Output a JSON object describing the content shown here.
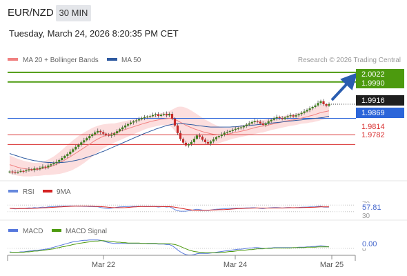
{
  "header": {
    "symbol": "EUR/NZD",
    "timeframe": "30 MIN",
    "datetime": "Tuesday, March 24, 2026 8:20:35 PM CET"
  },
  "legend": {
    "ma20_label": "MA 20 + Bollinger Bands",
    "ma50_label": "MA 50",
    "copyright": "Research © 2026 Trading Central",
    "ma20_color": "#f08080",
    "ma50_color": "#2e5aa0"
  },
  "levels": {
    "target_top": "2.0022",
    "target_bottom": "1.9990",
    "current_price": "1.9916",
    "pivot": "1.9869",
    "support1": "1.9814",
    "support2": "1.9782",
    "target_color": "#4c9a0e",
    "pivot_color": "#2b65d9",
    "support_color": "#d93030"
  },
  "rsi_panel": {
    "rsi_label": "RSI",
    "ma9_label": "9MA",
    "value": "57.81",
    "level_70": "70",
    "level_30": "30",
    "rsi_color": "#6688dd",
    "ma9_color": "#d42222"
  },
  "macd_panel": {
    "macd_label": "MACD",
    "signal_label": "MACD Signal",
    "value": "0.00",
    "zero_level": "0",
    "macd_color": "#5577dd",
    "signal_color": "#4c9a0e"
  },
  "x_axis": {
    "labels": [
      "Mar 22",
      "Mar 24",
      "Mar 25"
    ]
  },
  "chart_data": {
    "type": "candlestick",
    "price_range": [
      1.9675,
      2.004
    ],
    "series": [
      {
        "name": "MA 20 + Bollinger Bands"
      },
      {
        "name": "MA 50"
      }
    ],
    "horizontal_levels": [
      2.0022,
      1.999,
      1.9916,
      1.9869,
      1.9814,
      1.9782
    ],
    "close": [
      1.9692,
      1.969,
      1.9689,
      1.9691,
      1.9694,
      1.9693,
      1.9696,
      1.9699,
      1.9697,
      1.9702,
      1.97,
      1.9704,
      1.9708,
      1.9706,
      1.9712,
      1.9716,
      1.972,
      1.9724,
      1.973,
      1.9737,
      1.9744,
      1.975,
      1.9758,
      1.9766,
      1.9774,
      1.9781,
      1.9789,
      1.9796,
      1.9803,
      1.981,
      1.9816,
      1.9822,
      1.9827,
      1.9823,
      1.9818,
      1.9814,
      1.9811,
      1.9814,
      1.9819,
      1.9826,
      1.9833,
      1.9839,
      1.9845,
      1.985,
      1.9855,
      1.9859,
      1.9862,
      1.9866,
      1.987,
      1.9873,
      1.9875,
      1.9876,
      1.988,
      1.9883,
      1.9877,
      1.9881,
      1.9884,
      1.9879,
      1.9884,
      1.9868,
      1.9845,
      1.982,
      1.98,
      1.9788,
      1.9779,
      1.9783,
      1.979,
      1.9801,
      1.9812,
      1.9808,
      1.9798,
      1.979,
      1.9785,
      1.9792,
      1.9799,
      1.9806,
      1.981,
      1.9815,
      1.9821,
      1.9824,
      1.9827,
      1.9831,
      1.9834,
      1.9836,
      1.9839,
      1.9843,
      1.9848,
      1.9852,
      1.9857,
      1.9861,
      1.9858,
      1.9852,
      1.9847,
      1.9852,
      1.9859,
      1.9864,
      1.9869,
      1.9873,
      1.987,
      1.9867,
      1.9872,
      1.9876,
      1.9879,
      1.9875,
      1.9879,
      1.9883,
      1.9887,
      1.9892,
      1.9897,
      1.9902,
      1.9907,
      1.9912,
      1.992,
      1.9926,
      1.9916,
      1.9911,
      1.9916
    ],
    "ma20": [
      1.9715,
      1.9712,
      1.9709,
      1.9706,
      1.9704,
      1.9702,
      1.9701,
      1.97,
      1.9699,
      1.9699,
      1.9699,
      1.97,
      1.9702,
      1.9704,
      1.9706,
      1.9709,
      1.9712,
      1.9716,
      1.972,
      1.9725,
      1.973,
      1.9736,
      1.9741,
      1.9747,
      1.9753,
      1.9759,
      1.9765,
      1.9771,
      1.9777,
      1.9783,
      1.9789,
      1.9795,
      1.98,
      1.9805,
      1.9809,
      1.9812,
      1.9815,
      1.9818,
      1.982,
      1.9823,
      1.9826,
      1.9829,
      1.9832,
      1.9835,
      1.9838,
      1.9841,
      1.9844,
      1.9847,
      1.985,
      1.9853,
      1.9855,
      1.9858,
      1.986,
      1.9862,
      1.9864,
      1.9866,
      1.9867,
      1.9868,
      1.9869,
      1.9868,
      1.9865,
      1.9861,
      1.9856,
      1.9851,
      1.9846,
      1.9842,
      1.9838,
      1.9834,
      1.9831,
      1.9828,
      1.9825,
      1.9822,
      1.982,
      1.9818,
      1.9816,
      1.9815,
      1.9814,
      1.9814,
      1.9815,
      1.9816,
      1.9818,
      1.982,
      1.9822,
      1.9824,
      1.9826,
      1.9828,
      1.983,
      1.9833,
      1.9835,
      1.9838,
      1.984,
      1.9842,
      1.9843,
      1.9845,
      1.9847,
      1.9849,
      1.9851,
      1.9853,
      1.9855,
      1.9857,
      1.9859,
      1.9861,
      1.9863,
      1.9864,
      1.9866,
      1.9868,
      1.987,
      1.9872,
      1.9874,
      1.9877,
      1.9879,
      1.9882,
      1.9885,
      1.9888,
      1.989,
      1.9892,
      1.9894
    ],
    "ma50": [
      1.9752,
      1.9749,
      1.9746,
      1.9743,
      1.974,
      1.9737,
      1.9735,
      1.9732,
      1.973,
      1.9728,
      1.9727,
      1.9725,
      1.9724,
      1.9723,
      1.9722,
      1.9722,
      1.9721,
      1.9721,
      1.9722,
      1.9722,
      1.9723,
      1.9724,
      1.9725,
      1.9727,
      1.9729,
      1.9731,
      1.9733,
      1.9736,
      1.9739,
      1.9742,
      1.9745,
      1.9748,
      1.9752,
      1.9756,
      1.9759,
      1.9763,
      1.9767,
      1.9771,
      1.9775,
      1.9779,
      1.9783,
      1.9787,
      1.9791,
      1.9795,
      1.9799,
      1.9803,
      1.9807,
      1.9811,
      1.9815,
      1.9819,
      1.9822,
      1.9826,
      1.9829,
      1.9833,
      1.9836,
      1.9839,
      1.9842,
      1.9845,
      1.9847,
      1.9849,
      1.985,
      1.9851,
      1.9851,
      1.9851,
      1.985,
      1.9849,
      1.9848,
      1.9847,
      1.9845,
      1.9844,
      1.9843,
      1.9842,
      1.9841,
      1.984,
      1.984,
      1.984,
      1.984,
      1.984,
      1.984,
      1.984,
      1.984,
      1.9841,
      1.9841,
      1.9842,
      1.9843,
      1.9844,
      1.9844,
      1.9845,
      1.9846,
      1.9847,
      1.9848,
      1.9849,
      1.985,
      1.9851,
      1.9852,
      1.9853,
      1.9854,
      1.9855,
      1.9856,
      1.9857,
      1.9858,
      1.9859,
      1.986,
      1.9861,
      1.9862,
      1.9863,
      1.9864,
      1.9865,
      1.9866,
      1.9867,
      1.9868,
      1.9869,
      1.987,
      1.9871,
      1.9872,
      1.9874,
      1.9876
    ],
    "bb_width": [
      0.003,
      0.003,
      0.0029,
      0.0028,
      0.0027,
      0.0026,
      0.0025,
      0.0024,
      0.0023,
      0.0022,
      0.0022,
      0.0022,
      0.0023,
      0.0024,
      0.0026,
      0.0028,
      0.003,
      0.0033,
      0.0036,
      0.0039,
      0.0042,
      0.0045,
      0.0047,
      0.0049,
      0.005,
      0.0051,
      0.0051,
      0.0051,
      0.005,
      0.0049,
      0.0048,
      0.0046,
      0.0044,
      0.0042,
      0.004,
      0.0038,
      0.0036,
      0.0034,
      0.0032,
      0.0031,
      0.003,
      0.0029,
      0.0028,
      0.0027,
      0.0026,
      0.0025,
      0.0024,
      0.0023,
      0.0022,
      0.0021,
      0.002,
      0.002,
      0.002,
      0.002,
      0.002,
      0.002,
      0.0021,
      0.0022,
      0.0024,
      0.003,
      0.0038,
      0.0046,
      0.0052,
      0.0056,
      0.0058,
      0.0058,
      0.0057,
      0.0055,
      0.0052,
      0.0049,
      0.0046,
      0.0043,
      0.004,
      0.0037,
      0.0034,
      0.0031,
      0.0028,
      0.0025,
      0.0023,
      0.0021,
      0.002,
      0.0019,
      0.0019,
      0.0019,
      0.0019,
      0.0019,
      0.0019,
      0.002,
      0.002,
      0.0021,
      0.0021,
      0.0021,
      0.0021,
      0.002,
      0.002,
      0.0019,
      0.0019,
      0.0019,
      0.0019,
      0.0019,
      0.0019,
      0.0019,
      0.0019,
      0.0019,
      0.0019,
      0.0019,
      0.0019,
      0.002,
      0.0021,
      0.0022,
      0.0023,
      0.0024,
      0.0025,
      0.0025,
      0.0025,
      0.0025,
      0.0025
    ],
    "rsi": [
      50,
      49,
      47,
      48,
      50,
      49,
      51,
      53,
      52,
      55,
      53,
      56,
      58,
      56,
      59,
      60,
      61,
      62,
      63,
      63,
      64,
      64,
      65,
      64,
      64,
      63,
      63,
      62,
      62,
      61,
      61,
      60,
      60,
      56,
      52,
      50,
      49,
      51,
      54,
      57,
      59,
      60,
      61,
      61,
      62,
      62,
      62,
      62,
      62,
      61,
      61,
      61,
      62,
      61,
      58,
      60,
      61,
      58,
      60,
      52,
      42,
      36,
      33,
      33,
      33,
      36,
      38,
      42,
      45,
      43,
      40,
      38,
      37,
      40,
      43,
      45,
      46,
      47,
      48,
      49,
      50,
      50,
      51,
      51,
      51,
      52,
      53,
      53,
      54,
      54,
      52,
      50,
      49,
      51,
      53,
      54,
      55,
      55,
      54,
      52,
      54,
      55,
      55,
      53,
      55,
      56,
      57,
      58,
      58,
      59,
      59,
      60,
      62,
      63,
      58,
      57,
      58
    ],
    "macd": [
      -0.0009,
      -0.001,
      -0.001,
      -0.001,
      -0.0009,
      -0.0009,
      -0.0008,
      -0.0007,
      -0.0006,
      -0.0005,
      -0.0005,
      -0.0004,
      -0.0003,
      -0.0002,
      -0.0001,
      0.0001,
      0.0003,
      0.0005,
      0.0007,
      0.0009,
      0.0011,
      0.0013,
      0.0015,
      0.0017,
      0.0018,
      0.0019,
      0.002,
      0.0021,
      0.0021,
      0.0022,
      0.0022,
      0.0022,
      0.0022,
      0.0021,
      0.0019,
      0.0017,
      0.0015,
      0.0014,
      0.0013,
      0.0013,
      0.0013,
      0.0013,
      0.0013,
      0.0013,
      0.0013,
      0.0013,
      0.0013,
      0.0013,
      0.0013,
      0.0013,
      0.0012,
      0.0012,
      0.0012,
      0.0012,
      0.0011,
      0.0011,
      0.0011,
      0.001,
      0.001,
      0.0007,
      0.0002,
      -0.0004,
      -0.0009,
      -0.0013,
      -0.0016,
      -0.0017,
      -0.0017,
      -0.0016,
      -0.0014,
      -0.0013,
      -0.0013,
      -0.0013,
      -0.0013,
      -0.0012,
      -0.0011,
      -0.001,
      -0.0009,
      -0.0008,
      -0.0007,
      -0.0006,
      -0.0005,
      -0.0004,
      -0.0003,
      -0.0002,
      -0.0002,
      -0.0001,
      0.0,
      0.0001,
      0.0001,
      0.0002,
      0.0002,
      0.0001,
      0.0,
      0.0,
      0.0001,
      0.0001,
      0.0002,
      0.0002,
      0.0002,
      0.0002,
      0.0002,
      0.0002,
      0.0002,
      0.0002,
      0.0002,
      0.0003,
      0.0003,
      0.0003,
      0.0004,
      0.0004,
      0.0005,
      0.0005,
      0.0006,
      0.0007,
      0.0006,
      0.0005,
      0.0004
    ],
    "macd_signal": [
      -0.001,
      -0.001,
      -0.001,
      -0.001,
      -0.001,
      -0.001,
      -0.0009,
      -0.0009,
      -0.0008,
      -0.0007,
      -0.0007,
      -0.0006,
      -0.0005,
      -0.0004,
      -0.0003,
      -0.0002,
      -0.0001,
      0.0001,
      0.0002,
      0.0004,
      0.0005,
      0.0007,
      0.0008,
      0.001,
      0.0011,
      0.0013,
      0.0014,
      0.0015,
      0.0016,
      0.0017,
      0.0018,
      0.0019,
      0.0019,
      0.002,
      0.002,
      0.0019,
      0.0019,
      0.0018,
      0.0017,
      0.0016,
      0.0016,
      0.0015,
      0.0015,
      0.0014,
      0.0014,
      0.0014,
      0.0014,
      0.0014,
      0.0013,
      0.0013,
      0.0013,
      0.0013,
      0.0013,
      0.0013,
      0.0012,
      0.0012,
      0.0012,
      0.0012,
      0.0012,
      0.0011,
      0.001,
      0.0008,
      0.0005,
      0.0002,
      -0.0001,
      -0.0004,
      -0.0006,
      -0.0008,
      -0.0009,
      -0.001,
      -0.001,
      -0.0011,
      -0.0011,
      -0.0011,
      -0.0011,
      -0.0011,
      -0.0011,
      -0.001,
      -0.001,
      -0.0009,
      -0.0008,
      -0.0008,
      -0.0007,
      -0.0006,
      -0.0005,
      -0.0005,
      -0.0004,
      -0.0003,
      -0.0003,
      -0.0002,
      -0.0001,
      -0.0001,
      -0.0001,
      0.0,
      0.0,
      0.0,
      0.0001,
      0.0001,
      0.0001,
      0.0001,
      0.0001,
      0.0001,
      0.0001,
      0.0002,
      0.0002,
      0.0002,
      0.0002,
      0.0002,
      0.0003,
      0.0003,
      0.0003,
      0.0003,
      0.0004,
      0.0004,
      0.0004,
      0.0004,
      0.0004
    ]
  }
}
